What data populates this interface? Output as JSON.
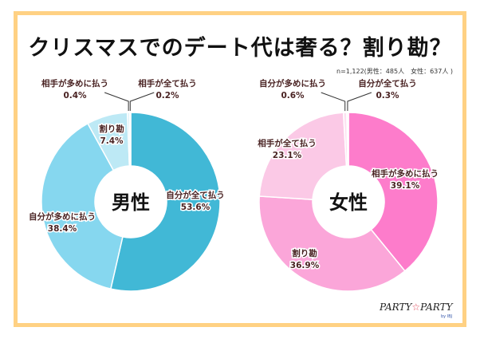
{
  "title": "クリスマスでのデート代は奢る？割り勘？",
  "sample_note": "n=1,122(男性：485人　女性：637人 )",
  "logo": {
    "text_left": "PARTY",
    "star": "☆",
    "text_right": "PARTY",
    "by": "by IBJ"
  },
  "chart_data": [
    {
      "type": "pie",
      "donut": true,
      "center_label": "男性",
      "title": "男性",
      "categories": [
        "自分が全て払う",
        "自分が多めに払う",
        "割り勘",
        "相手が多めに払う",
        "相手が全て払う"
      ],
      "values": [
        53.6,
        38.4,
        7.4,
        0.4,
        0.2
      ],
      "labels": [
        "53.6%",
        "38.4%",
        "7.4%",
        "0.4%",
        "0.2%"
      ],
      "colors": [
        "#41b8d6",
        "#86d7ef",
        "#bde9f5",
        "#d9f2f9",
        "#e8f7fb"
      ]
    },
    {
      "type": "pie",
      "donut": true,
      "center_label": "女性",
      "title": "女性",
      "categories": [
        "相手が多めに払う",
        "割り勘",
        "相手が全て払う",
        "自分が多めに払う",
        "自分が全て払う"
      ],
      "values": [
        39.1,
        36.9,
        23.1,
        0.6,
        0.3
      ],
      "labels": [
        "39.1%",
        "36.9%",
        "23.1%",
        "0.6%",
        "0.3%"
      ],
      "colors": [
        "#fd7ccb",
        "#fba6d9",
        "#fbc9e6",
        "#fde0f1",
        "#feeef7"
      ]
    }
  ]
}
